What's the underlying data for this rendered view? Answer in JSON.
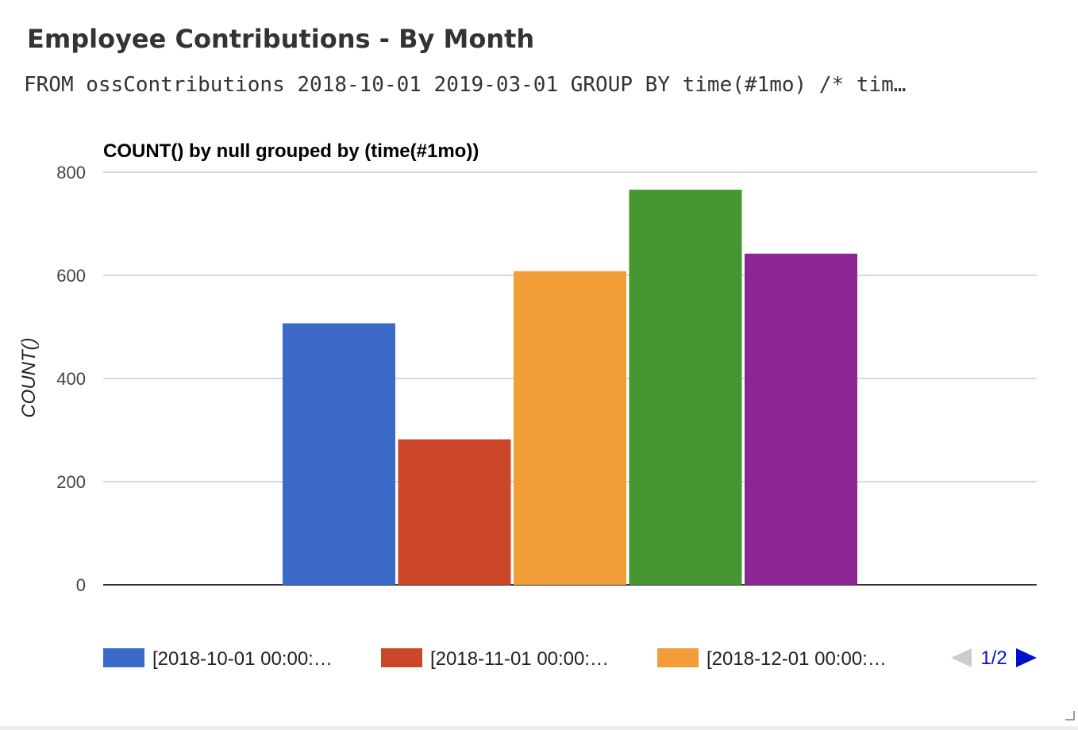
{
  "widget": {
    "title": "Employee Contributions - By Month",
    "query": "FROM ossContributions 2018-10-01 2019-03-01 GROUP BY time(#1mo) /* tim…"
  },
  "chart_data": {
    "type": "bar",
    "title": "COUNT() by null grouped by (time(#1mo))",
    "xlabel": "",
    "ylabel": "COUNT()",
    "ylim": [
      0,
      800
    ],
    "yticks": [
      "0",
      "200",
      "400",
      "600",
      "800"
    ],
    "grid": true,
    "legend_position": "bottom",
    "series": [
      {
        "name": "[2018-10-01 00:00:…",
        "value": 507,
        "color": "#3b6ac8"
      },
      {
        "name": "[2018-11-01 00:00:…",
        "value": 282,
        "color": "#cc4729"
      },
      {
        "name": "[2018-12-01 00:00:…",
        "value": 608,
        "color": "#f29d38"
      },
      {
        "value": 766,
        "color": "#459530"
      },
      {
        "value": 642,
        "color": "#8a2593"
      }
    ],
    "legend_page": "1/2"
  }
}
